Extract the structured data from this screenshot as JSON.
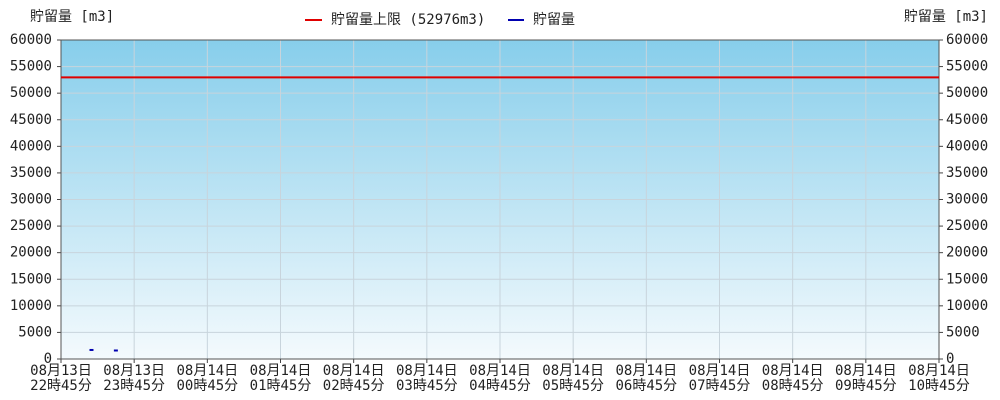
{
  "chart_data": {
    "type": "line",
    "y_axis_label": "貯留量 [m3]",
    "y2_axis_label": "貯留量 [m3]",
    "reference_line": {
      "name": "貯留量上限 (52976m3)",
      "value": 52976,
      "color": "#e00000"
    },
    "series": [
      {
        "name": "貯留量",
        "color": "#0000b0",
        "x": [
          1390,
          1410
        ],
        "values": [
          1700,
          1600
        ]
      }
    ],
    "xlim": [
      1365,
      2085
    ],
    "xticks": [
      {
        "value": 1365,
        "label": "08月13日\n22時45分"
      },
      {
        "value": 1425,
        "label": "08月13日\n23時45分"
      },
      {
        "value": 1485,
        "label": "08月14日\n00時45分"
      },
      {
        "value": 1545,
        "label": "08月14日\n01時45分"
      },
      {
        "value": 1605,
        "label": "08月14日\n02時45分"
      },
      {
        "value": 1665,
        "label": "08月14日\n03時45分"
      },
      {
        "value": 1725,
        "label": "08月14日\n04時45分"
      },
      {
        "value": 1785,
        "label": "08月14日\n05時45分"
      },
      {
        "value": 1845,
        "label": "08月14日\n06時45分"
      },
      {
        "value": 1905,
        "label": "08月14日\n07時45分"
      },
      {
        "value": 1965,
        "label": "08月14日\n08時45分"
      },
      {
        "value": 2025,
        "label": "08月14日\n09時45分"
      },
      {
        "value": 2085,
        "label": "08月14日\n10時45分"
      }
    ],
    "ylim": [
      0,
      60000
    ],
    "yticks": [
      0,
      5000,
      10000,
      15000,
      20000,
      25000,
      30000,
      35000,
      40000,
      45000,
      50000,
      55000,
      60000
    ],
    "y2lim": [
      0,
      60000
    ],
    "y2ticks": [
      0,
      5000,
      10000,
      15000,
      20000,
      25000,
      30000,
      35000,
      40000,
      45000,
      50000,
      55000,
      60000
    ],
    "grid": true
  }
}
